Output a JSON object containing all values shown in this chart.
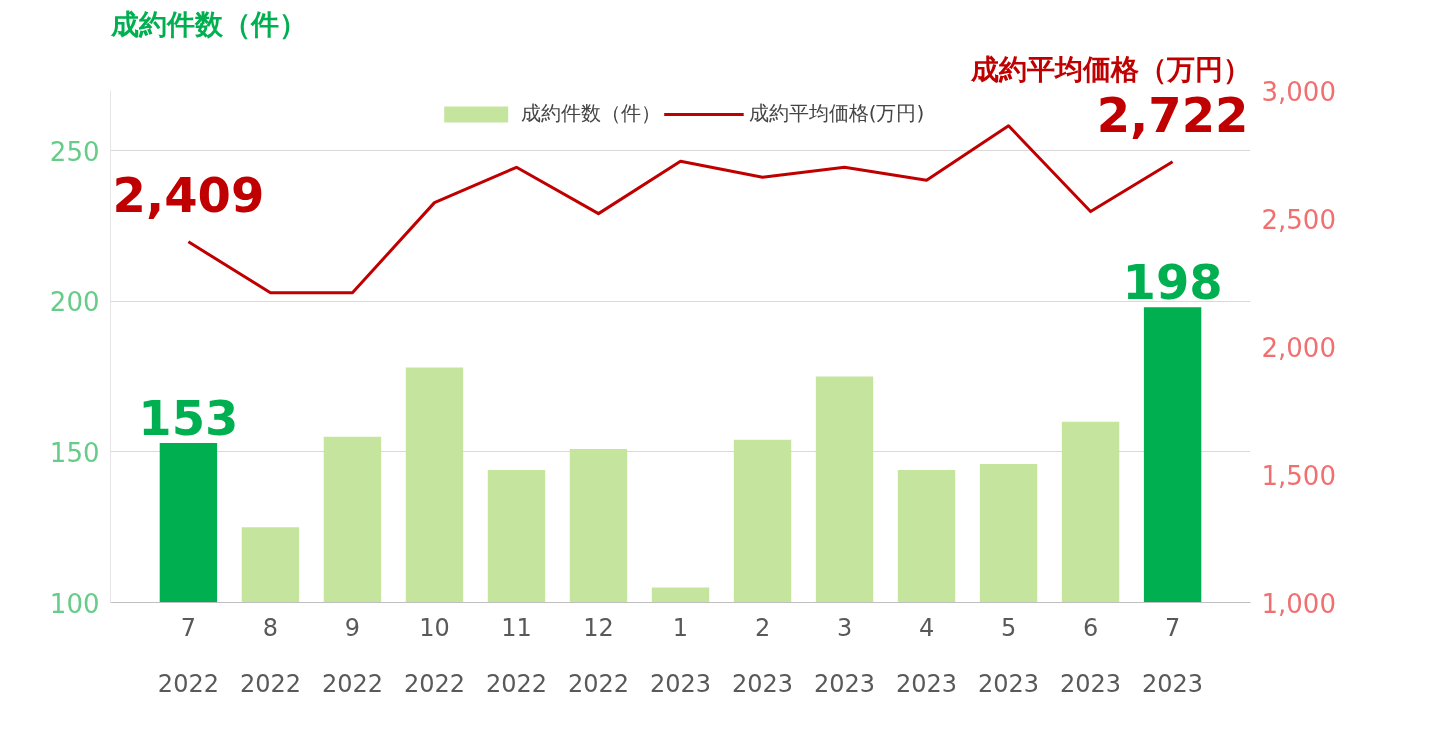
{
  "chart_data": {
    "type": "bar",
    "ylabel": "成約件数（件）",
    "y2label": "成約平均価格（万円）",
    "categories": [
      "7\n2022",
      "8\n2022",
      "9\n2022",
      "10\n2022",
      "11\n2022",
      "12\n2022",
      "1\n2023",
      "2\n2023",
      "3\n2023",
      "4\n2023",
      "5\n2023",
      "6\n2023",
      "7\n2023"
    ],
    "series": [
      {
        "name": "成約件数（件）",
        "color": "#c5e59f",
        "colors": [
          "#00b050",
          "#c5e59f",
          "#c5e59f",
          "#c5e59f",
          "#c5e59f",
          "#c5e59f",
          "#c5e59f",
          "#c5e59f",
          "#c5e59f",
          "#c5e59f",
          "#c5e59f",
          "#c5e59f",
          "#00b050"
        ],
        "values": [
          153,
          125,
          155,
          178,
          144,
          151,
          105,
          154,
          175,
          144,
          146,
          160,
          198
        ],
        "value_labels": [
          "153",
          null,
          null,
          null,
          null,
          null,
          null,
          null,
          null,
          null,
          null,
          null,
          "198"
        ]
      },
      {
        "name": "成約平均価格(万円)",
        "type": "line",
        "axis": "y2",
        "color": "#c00000",
        "values": [
          2409,
          2210,
          2210,
          2562,
          2700,
          2519,
          2724,
          2661,
          2700,
          2649,
          2862,
          2527,
          2722
        ],
        "value_labels": [
          "2,409",
          null,
          null,
          null,
          null,
          null,
          null,
          null,
          null,
          null,
          null,
          null,
          "2,722"
        ]
      }
    ],
    "ylim": [
      100,
      270
    ],
    "yticks": [
      100,
      150,
      200,
      250
    ],
    "y2lim": [
      1000,
      3000
    ],
    "y2ticks": [
      {
        "value": 1000,
        "label": "1,000"
      },
      {
        "value": 1500,
        "label": "1,500"
      },
      {
        "value": 2000,
        "label": "2,000"
      },
      {
        "value": 2500,
        "label": "2,500"
      },
      {
        "value": 3000,
        "label": "3,000"
      }
    ],
    "grid": "y",
    "legend": "top"
  }
}
